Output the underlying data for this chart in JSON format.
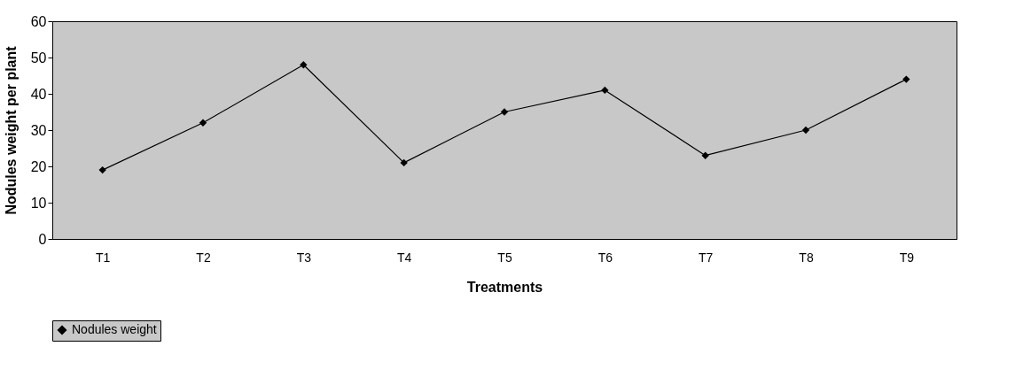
{
  "chart_data": {
    "type": "line",
    "xlabel": "Treatments",
    "ylabel": "Nodules weight per plant",
    "categories": [
      "T1",
      "T2",
      "T3",
      "T4",
      "T5",
      "T6",
      "T7",
      "T8",
      "T9"
    ],
    "series": [
      {
        "name": "Nodules weight",
        "color": "#000000",
        "values": [
          19,
          32,
          48,
          21,
          35,
          41,
          23,
          30,
          44
        ]
      }
    ],
    "ylim": [
      0,
      60
    ],
    "yticks": [
      0,
      10,
      20,
      30,
      40,
      50,
      60
    ],
    "grid": false,
    "legend": "bottom",
    "marker": "diamond",
    "line_style": "solid"
  }
}
